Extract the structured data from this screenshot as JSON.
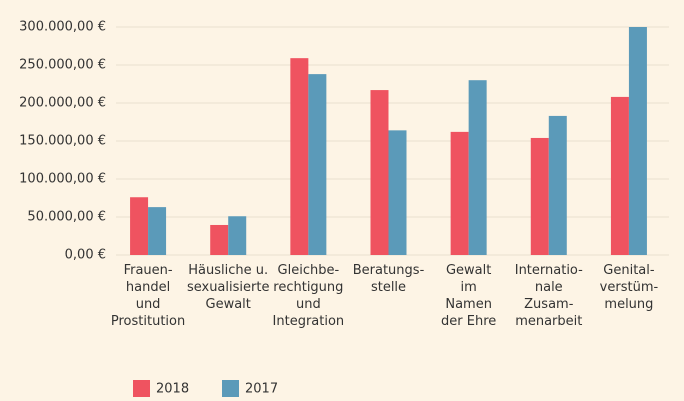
{
  "chart_data": {
    "type": "bar",
    "categories": [
      [
        "Frauen-",
        "handel",
        "und",
        "Prostitution"
      ],
      [
        "Häusliche u.",
        "sexualisierte",
        "Gewalt"
      ],
      [
        "Gleichbe-",
        "rechtigung",
        "und",
        "Integration"
      ],
      [
        "Beratungs-",
        "stelle"
      ],
      [
        "Gewalt",
        "im",
        "Namen",
        "der Ehre"
      ],
      [
        "Internatio-",
        "nale",
        "Zusam-",
        "menarbeit"
      ],
      [
        "Genital-",
        "verstüm-",
        "melung"
      ]
    ],
    "series": [
      {
        "name": "2018",
        "color": "#ef5360",
        "values": [
          76000,
          39500,
          259000,
          217000,
          162000,
          154000,
          208000
        ]
      },
      {
        "name": "2017",
        "color": "#5b9ab9",
        "values": [
          63000,
          51000,
          238000,
          164000,
          230000,
          183000,
          300000
        ]
      }
    ],
    "ylim": [
      0,
      300000
    ],
    "yticks": [
      {
        "value": 0,
        "label": "0,00 €"
      },
      {
        "value": 50000,
        "label": "50.000,00 €"
      },
      {
        "value": 100000,
        "label": "100.000,00 €"
      },
      {
        "value": 150000,
        "label": "150.000,00 €"
      },
      {
        "value": 200000,
        "label": "200.000,00 €"
      },
      {
        "value": 250000,
        "label": "250.000,00 €"
      },
      {
        "value": 300000,
        "label": "300.000,00 €"
      }
    ],
    "grid": true,
    "legend": "bottom"
  }
}
